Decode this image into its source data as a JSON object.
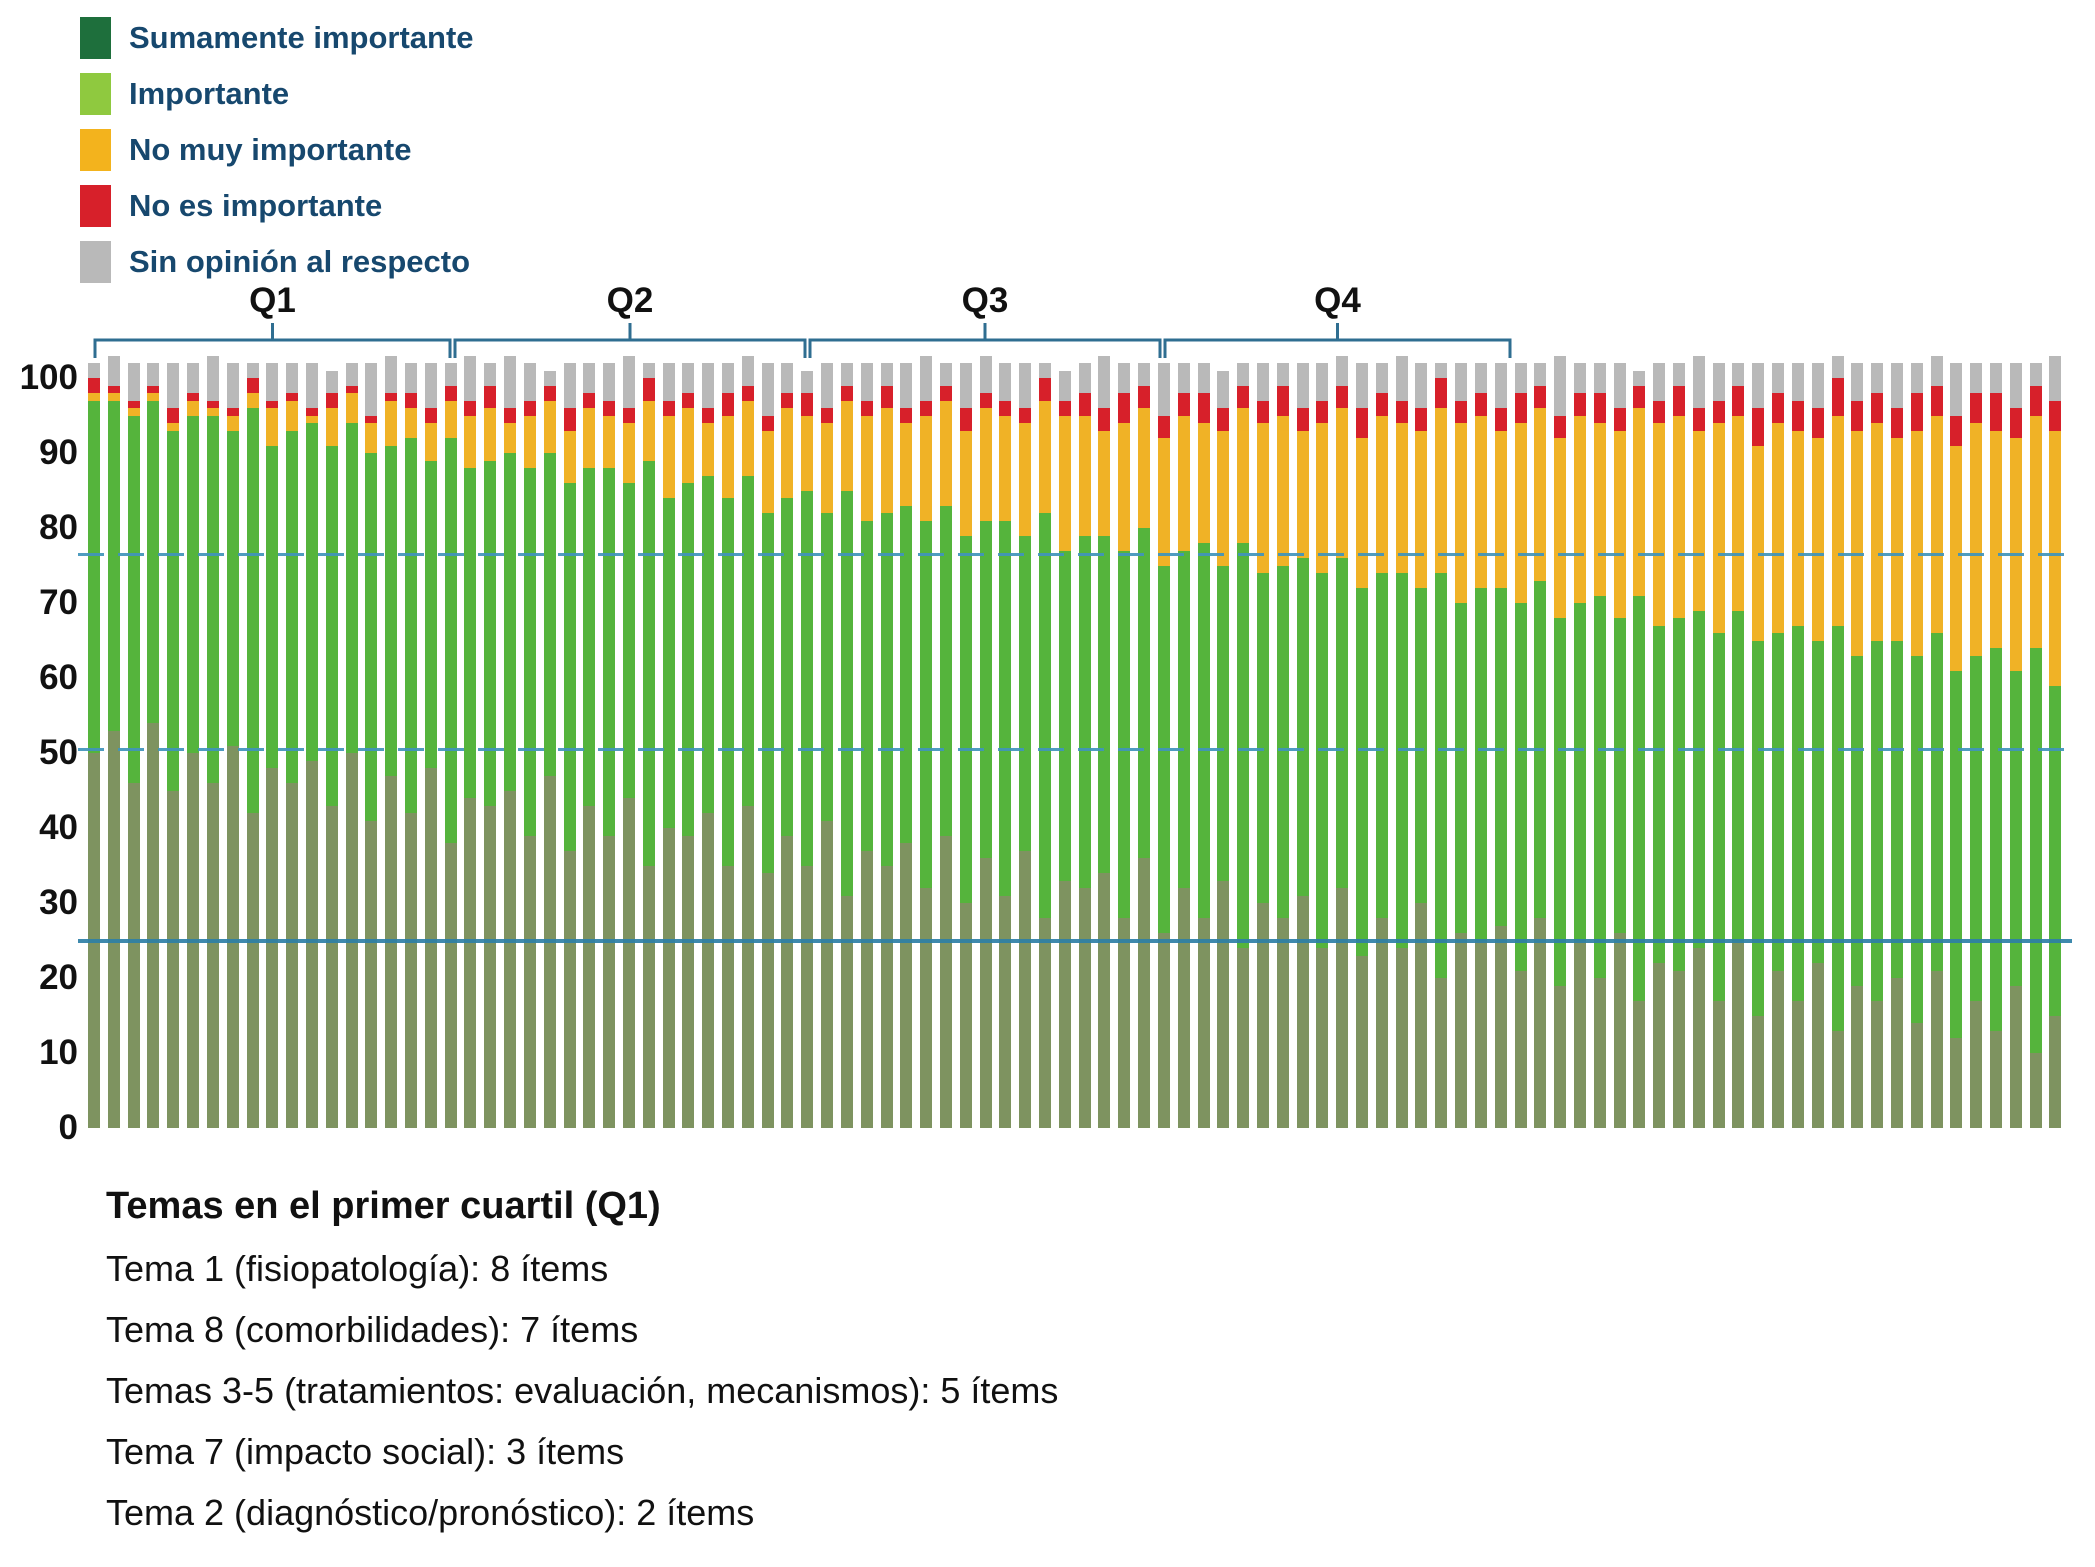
{
  "legend": {
    "text_color": "#17486e",
    "items": [
      {
        "label": "Sumamente importante",
        "color": "#1e6f3c"
      },
      {
        "label": "Importante",
        "color": "#8fc93f"
      },
      {
        "label": "No muy importante",
        "color": "#f3b31d"
      },
      {
        "label": "No es importante",
        "color": "#d7202a"
      },
      {
        "label": "Sin opinión al respecto",
        "color": "#b9b9b9"
      }
    ]
  },
  "quartile_labels": [
    "Q1",
    "Q2",
    "Q3",
    "Q4"
  ],
  "chart_data": {
    "type": "bar",
    "stacked": true,
    "orientation": "vertical",
    "n_items": 100,
    "ylim": [
      0,
      100
    ],
    "yticks": [
      0,
      10,
      20,
      30,
      40,
      50,
      60,
      70,
      80,
      90,
      100
    ],
    "grid": false,
    "legend_position": "top-left",
    "quartile_bracket_color": "#2f6e91",
    "reference_lines": [
      {
        "value": 76.5,
        "style": "dashed",
        "color": "#4094bb"
      },
      {
        "value": 50.5,
        "style": "dashed",
        "color": "#4094bb"
      },
      {
        "value": 25,
        "style": "solid",
        "color": "#2e7fa6"
      }
    ],
    "series": [
      {
        "name": "Sumamente importante",
        "color": "#7e9360",
        "values": [
          50,
          53,
          46,
          54,
          45,
          50,
          46,
          51,
          42,
          48,
          46,
          49,
          43,
          50,
          41,
          47,
          42,
          48,
          38,
          44,
          43,
          45,
          39,
          47,
          37,
          43,
          39,
          44,
          35,
          40,
          39,
          42,
          35,
          43,
          34,
          39,
          35,
          41,
          31,
          37,
          35,
          38,
          32,
          39,
          30,
          36,
          31,
          37,
          28,
          33,
          32,
          34,
          28,
          36,
          26,
          32,
          28,
          33,
          24,
          30,
          28,
          31,
          24,
          32,
          23,
          28,
          24,
          30,
          20,
          26,
          25,
          27,
          21,
          28,
          19,
          25,
          20,
          26,
          17,
          22,
          21,
          24,
          17,
          25,
          15,
          21,
          17,
          22,
          13,
          19,
          17,
          20,
          14,
          21,
          12,
          17,
          13,
          19,
          10,
          15
        ]
      },
      {
        "name": "Importante",
        "color": "#55b43c",
        "values": [
          47,
          44,
          49,
          43,
          48,
          45,
          49,
          42,
          54,
          43,
          47,
          45,
          48,
          44,
          49,
          44,
          50,
          41,
          54,
          44,
          46,
          45,
          49,
          43,
          49,
          45,
          49,
          42,
          54,
          44,
          47,
          45,
          49,
          44,
          48,
          45,
          50,
          41,
          54,
          44,
          47,
          45,
          49,
          44,
          49,
          45,
          50,
          42,
          54,
          44,
          47,
          45,
          49,
          44,
          49,
          45,
          50,
          42,
          54,
          44,
          47,
          45,
          50,
          44,
          49,
          46,
          50,
          42,
          54,
          44,
          47,
          45,
          49,
          45,
          49,
          45,
          51,
          42,
          54,
          45,
          47,
          45,
          49,
          44,
          50,
          45,
          50,
          43,
          54,
          44,
          48,
          45,
          49,
          45,
          49,
          46,
          51,
          42,
          54,
          44
        ]
      },
      {
        "name": "No muy importante",
        "color": "#f0b226",
        "values": [
          1,
          1,
          1,
          1,
          1,
          2,
          1,
          2,
          2,
          5,
          4,
          1,
          5,
          4,
          4,
          6,
          4,
          5,
          5,
          7,
          7,
          4,
          7,
          7,
          7,
          8,
          7,
          8,
          8,
          11,
          10,
          7,
          11,
          10,
          11,
          12,
          10,
          12,
          12,
          14,
          14,
          11,
          14,
          14,
          14,
          15,
          14,
          15,
          15,
          18,
          16,
          14,
          17,
          16,
          17,
          18,
          16,
          18,
          18,
          20,
          20,
          17,
          20,
          20,
          20,
          21,
          20,
          21,
          22,
          24,
          23,
          21,
          24,
          23,
          24,
          25,
          23,
          25,
          25,
          27,
          27,
          24,
          28,
          26,
          26,
          28,
          26,
          27,
          28,
          30,
          29,
          27,
          30,
          29,
          30,
          31,
          29,
          31,
          31,
          34
        ]
      },
      {
        "name": "No es importante",
        "color": "#d7202a",
        "values": [
          2,
          1,
          1,
          1,
          2,
          1,
          1,
          1,
          2,
          1,
          1,
          1,
          2,
          1,
          1,
          1,
          2,
          2,
          2,
          2,
          3,
          2,
          2,
          2,
          3,
          2,
          2,
          2,
          3,
          2,
          2,
          2,
          3,
          2,
          2,
          2,
          3,
          2,
          2,
          2,
          3,
          2,
          2,
          2,
          3,
          2,
          2,
          2,
          3,
          2,
          3,
          3,
          4,
          3,
          3,
          3,
          4,
          3,
          3,
          3,
          4,
          3,
          3,
          3,
          4,
          3,
          3,
          3,
          4,
          3,
          3,
          3,
          4,
          3,
          3,
          3,
          4,
          3,
          3,
          3,
          4,
          3,
          3,
          4,
          5,
          4,
          4,
          4,
          5,
          4,
          4,
          4,
          5,
          4,
          4,
          4,
          5,
          4,
          4,
          4
        ]
      },
      {
        "name": "Sin opinión al respecto",
        "color": "#b9b9b9",
        "values": [
          2,
          4,
          5,
          3,
          6,
          4,
          6,
          6,
          2,
          5,
          4,
          6,
          3,
          3,
          7,
          5,
          4,
          6,
          3,
          6,
          3,
          7,
          5,
          2,
          6,
          4,
          5,
          7,
          2,
          5,
          4,
          6,
          4,
          4,
          7,
          4,
          3,
          6,
          3,
          5,
          3,
          6,
          6,
          3,
          6,
          5,
          5,
          6,
          2,
          4,
          4,
          7,
          4,
          3,
          7,
          4,
          4,
          5,
          3,
          5,
          3,
          6,
          5,
          4,
          6,
          4,
          6,
          6,
          2,
          5,
          4,
          6,
          4,
          3,
          8,
          4,
          4,
          6,
          2,
          5,
          3,
          7,
          5,
          3,
          6,
          4,
          5,
          6,
          3,
          5,
          4,
          6,
          4,
          4,
          7,
          4,
          4,
          6,
          3,
          6
        ]
      }
    ]
  },
  "footer": {
    "title": "Temas en el primer cuartil (Q1)",
    "lines": [
      "Tema 1 (fisiopatología): 8 ítems",
      "Tema 8 (comorbilidades): 7 ítems",
      "Temas 3-5 (tratamientos: evaluación, mecanismos): 5 ítems",
      "Tema 7 (impacto social): 3 ítems",
      "Tema 2 (diagnóstico/pronóstico): 2 ítems"
    ]
  }
}
